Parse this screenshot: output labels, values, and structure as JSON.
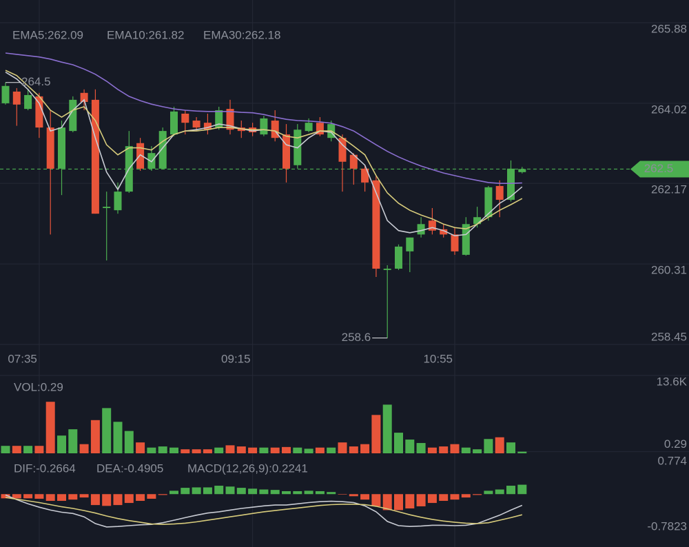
{
  "chart_data": [
    {
      "type": "candlestick",
      "categories": [
        null,
        null,
        null,
        "07:35",
        null,
        null,
        null,
        null,
        null,
        null,
        null,
        null,
        null,
        null,
        null,
        null,
        null,
        null,
        null,
        null,
        null,
        null,
        "09:15",
        null,
        null,
        null,
        null,
        null,
        null,
        null,
        null,
        null,
        null,
        null,
        null,
        null,
        null,
        null,
        null,
        null,
        "10:55",
        null,
        null,
        null,
        null,
        null,
        null
      ],
      "open": [
        264.02,
        264.29,
        263.89,
        264.18,
        263.46,
        262.51,
        263.38,
        264.26,
        264.1,
        261.6,
        261.55,
        261.98,
        263.1,
        262.51,
        262.51,
        263.3,
        263.78,
        263.62,
        263.57,
        263.46,
        263.89,
        263.46,
        263.46,
        263.3,
        263.62,
        263.3,
        262.59,
        263.38,
        263.57,
        263.22,
        263.22,
        262.83,
        262.51,
        262.24,
        260.17,
        260.2,
        260.6,
        260.99,
        261.31,
        261.11,
        260.99,
        260.52,
        261.23,
        261.39,
        262.11,
        261.79,
        262.43
      ],
      "high": [
        264.5,
        264.37,
        264.34,
        264.26,
        263.86,
        263.62,
        264.18,
        264.34,
        264.34,
        261.98,
        262.19,
        263.38,
        263.22,
        263.03,
        263.46,
        263.94,
        263.86,
        263.7,
        263.78,
        263.94,
        264.1,
        263.62,
        263.57,
        263.73,
        263.86,
        263.54,
        263.54,
        263.67,
        263.7,
        263.62,
        263.3,
        262.87,
        262.59,
        262.35,
        260.28,
        260.76,
        260.92,
        261.39,
        261.6,
        261.23,
        261.15,
        261.39,
        261.63,
        262.11,
        262.24,
        262.7,
        262.55
      ],
      "low": [
        263.99,
        263.5,
        263.86,
        263.22,
        260.99,
        261.9,
        263.35,
        263.86,
        261.47,
        260.39,
        261.47,
        261.95,
        262.46,
        262.46,
        262.51,
        263.26,
        263.3,
        263.38,
        263.3,
        263.41,
        263.3,
        263.22,
        263.26,
        263.26,
        263.14,
        262.19,
        262.51,
        263.35,
        263.26,
        263.14,
        261.98,
        262.14,
        261.98,
        260.01,
        258.6,
        260.17,
        260.12,
        260.92,
        260.99,
        260.92,
        260.52,
        260.5,
        261.15,
        261.31,
        261.39,
        261.75,
        262.4
      ],
      "close": [
        264.42,
        263.99,
        264.21,
        263.46,
        262.51,
        263.46,
        264.1,
        264.05,
        261.47,
        261.63,
        261.98,
        263.03,
        262.51,
        262.87,
        263.38,
        263.83,
        263.57,
        263.46,
        263.41,
        263.86,
        263.41,
        263.38,
        263.35,
        263.67,
        263.22,
        262.51,
        263.41,
        263.57,
        263.3,
        263.54,
        262.67,
        262.51,
        262.19,
        260.2,
        260.2,
        260.71,
        260.92,
        261.23,
        261.08,
        260.99,
        260.6,
        261.23,
        261.39,
        262.08,
        261.79,
        262.51,
        262.5
      ],
      "up_color": "#4caf50",
      "down_color": "#e8553a",
      "ylim": [
        258.45,
        265.88
      ],
      "yticks": [
        265.88,
        264.02,
        262.17,
        260.31,
        258.45
      ],
      "grid": true,
      "max_marker": 264.5,
      "min_marker": 258.6,
      "last_price": 262.5,
      "series": [
        {
          "name": "EMA5",
          "label": "EMA5:262.09",
          "color": "#c9ccd4",
          "values": [
            264.74,
            264.58,
            264.34,
            264.02,
            263.38,
            263.46,
            263.86,
            264.1,
            263.22,
            262.43,
            262.03,
            262.51,
            262.83,
            262.67,
            262.99,
            263.3,
            263.38,
            263.41,
            263.46,
            263.54,
            263.5,
            263.43,
            263.38,
            263.41,
            263.38,
            263.06,
            262.99,
            263.22,
            263.38,
            263.35,
            263.06,
            262.83,
            262.59,
            261.95,
            261.31,
            261.08,
            261.03,
            261.08,
            261.15,
            261.08,
            260.96,
            260.99,
            261.23,
            261.47,
            261.71,
            261.87,
            262.09
          ]
        },
        {
          "name": "EMA10",
          "label": "EMA10:261.82",
          "color": "#d8cc7c",
          "values": [
            264.78,
            264.66,
            264.42,
            264.18,
            263.86,
            263.7,
            263.86,
            263.94,
            263.62,
            263.06,
            262.83,
            262.99,
            262.99,
            262.94,
            263.14,
            263.3,
            263.38,
            263.38,
            263.41,
            263.46,
            263.46,
            263.43,
            263.41,
            263.41,
            263.38,
            263.26,
            263.22,
            263.3,
            263.38,
            263.38,
            263.22,
            263.03,
            262.83,
            262.35,
            261.95,
            261.71,
            261.55,
            261.44,
            261.35,
            261.23,
            261.15,
            261.12,
            261.23,
            261.39,
            261.55,
            261.68,
            261.82
          ]
        },
        {
          "name": "EMA30",
          "label": "EMA30:262.18",
          "color": "#8b6fd1",
          "values": [
            265.18,
            265.15,
            265.12,
            265.09,
            265.04,
            264.97,
            264.91,
            264.81,
            264.69,
            264.53,
            264.34,
            264.18,
            264.08,
            264.0,
            263.94,
            263.89,
            263.86,
            263.84,
            263.83,
            263.83,
            263.83,
            263.81,
            263.8,
            263.76,
            263.7,
            263.65,
            263.62,
            263.61,
            263.59,
            263.56,
            263.48,
            263.38,
            263.22,
            263.06,
            262.91,
            262.78,
            262.67,
            262.57,
            262.49,
            262.41,
            262.35,
            262.29,
            262.24,
            262.19,
            262.17,
            262.17,
            262.18
          ]
        }
      ]
    },
    {
      "type": "bar",
      "label": "VOL:0.29",
      "label_color": "#4caf50",
      "values": [
        1.3,
        1.3,
        1.3,
        1.3,
        9.0,
        3.1,
        4.2,
        1.6,
        5.8,
        7.9,
        5.5,
        3.9,
        1.9,
        1.0,
        1.2,
        1.0,
        0.7,
        0.7,
        0.7,
        1.0,
        1.4,
        1.2,
        1.0,
        1.0,
        1.0,
        1.1,
        1.0,
        0.8,
        1.0,
        1.0,
        1.9,
        1.2,
        1.6,
        6.7,
        8.5,
        3.6,
        2.4,
        1.8,
        1.0,
        1.2,
        1.6,
        1.0,
        0.7,
        2.5,
        2.8,
        1.9,
        0.29
      ],
      "ylim": [
        0,
        13.6
      ],
      "yticks": [
        {
          "value": 13.6,
          "label": "13.6K"
        },
        0.29
      ],
      "grid": true
    },
    {
      "type": "macd",
      "histogram_label": "MACD(12,26,9):0.2241",
      "up_color": "#4caf50",
      "down_color": "#e8553a",
      "histogram": [
        -0.1,
        -0.1,
        -0.1,
        -0.11,
        -0.16,
        -0.16,
        -0.13,
        -0.08,
        -0.26,
        -0.28,
        -0.26,
        -0.21,
        -0.16,
        -0.11,
        -0.02,
        0.08,
        0.15,
        0.16,
        0.16,
        0.2,
        0.18,
        0.15,
        0.13,
        0.11,
        0.1,
        0.07,
        0.07,
        0.08,
        0.07,
        0.05,
        -0.01,
        -0.05,
        -0.13,
        -0.29,
        -0.38,
        -0.38,
        -0.34,
        -0.29,
        -0.21,
        -0.16,
        -0.13,
        -0.08,
        -0.02,
        0.08,
        0.11,
        0.2,
        0.2241
      ],
      "ylim": [
        -0.7823,
        0.774
      ],
      "yticks": [
        0.774,
        -0.7823
      ],
      "series": [
        {
          "name": "DIF",
          "label": "DIF:-0.2664",
          "color": "#c9ccd4",
          "values": [
            -0.02,
            -0.13,
            -0.23,
            -0.31,
            -0.38,
            -0.43,
            -0.46,
            -0.54,
            -0.7,
            -0.78,
            -0.77,
            -0.75,
            -0.73,
            -0.72,
            -0.68,
            -0.62,
            -0.56,
            -0.5,
            -0.45,
            -0.42,
            -0.38,
            -0.34,
            -0.31,
            -0.28,
            -0.26,
            -0.26,
            -0.23,
            -0.2,
            -0.18,
            -0.17,
            -0.18,
            -0.2,
            -0.28,
            -0.42,
            -0.65,
            -0.75,
            -0.77,
            -0.76,
            -0.74,
            -0.74,
            -0.75,
            -0.74,
            -0.7,
            -0.6,
            -0.5,
            -0.38,
            -0.2664
          ]
        },
        {
          "name": "DEA",
          "label": "DEA:-0.4905",
          "color": "#d8cc7c",
          "values": [
            -0.08,
            -0.12,
            -0.16,
            -0.2,
            -0.25,
            -0.3,
            -0.34,
            -0.39,
            -0.45,
            -0.52,
            -0.58,
            -0.63,
            -0.67,
            -0.71,
            -0.72,
            -0.71,
            -0.69,
            -0.66,
            -0.62,
            -0.58,
            -0.54,
            -0.5,
            -0.46,
            -0.42,
            -0.39,
            -0.36,
            -0.33,
            -0.3,
            -0.27,
            -0.25,
            -0.24,
            -0.24,
            -0.25,
            -0.29,
            -0.35,
            -0.42,
            -0.49,
            -0.55,
            -0.6,
            -0.64,
            -0.67,
            -0.69,
            -0.7,
            -0.68,
            -0.62,
            -0.56,
            -0.4905
          ]
        }
      ]
    }
  ]
}
